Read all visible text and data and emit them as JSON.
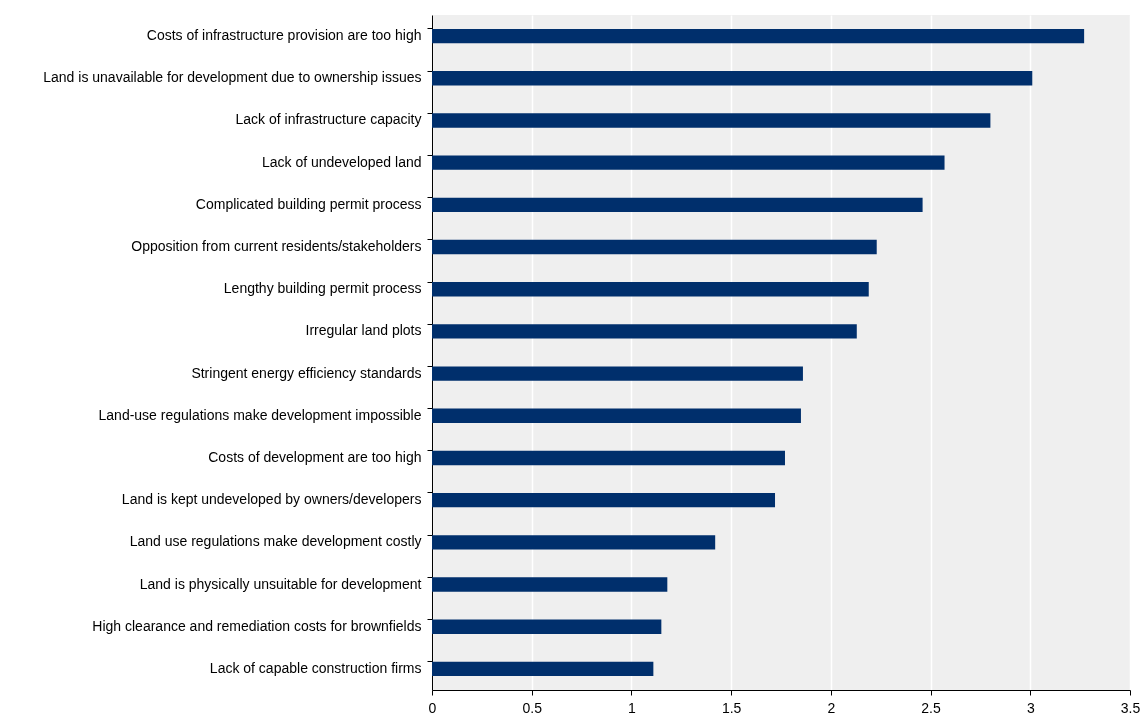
{
  "chart_data": {
    "type": "bar",
    "orientation": "horizontal",
    "categories": [
      "Costs of infrastructure provision are too high",
      "Land is unavailable for development due to ownership issues",
      "Lack of infrastructure capacity",
      "Lack of undeveloped land",
      "Complicated building permit process",
      "Opposition from current residents/stakeholders",
      "Lengthy building permit process",
      "Irregular land plots",
      "Stringent energy efficiency standards",
      "Land-use regulations make development impossible",
      "Costs of development are too high",
      "Land is kept undeveloped by owners/developers",
      "Land use regulations make development costly",
      "Land is physically unsuitable for development",
      "High clearance and remediation costs for brownfields",
      "Lack of capable construction firms"
    ],
    "values": [
      3.27,
      3.01,
      2.8,
      2.57,
      2.46,
      2.23,
      2.19,
      2.13,
      1.86,
      1.85,
      1.77,
      1.72,
      1.42,
      1.18,
      1.15,
      1.11
    ],
    "color": "#002f6c",
    "xlim": [
      0,
      3.5
    ],
    "xticks": [
      0,
      0.5,
      1,
      1.5,
      2,
      2.5,
      3,
      3.5
    ],
    "grid": "x"
  }
}
